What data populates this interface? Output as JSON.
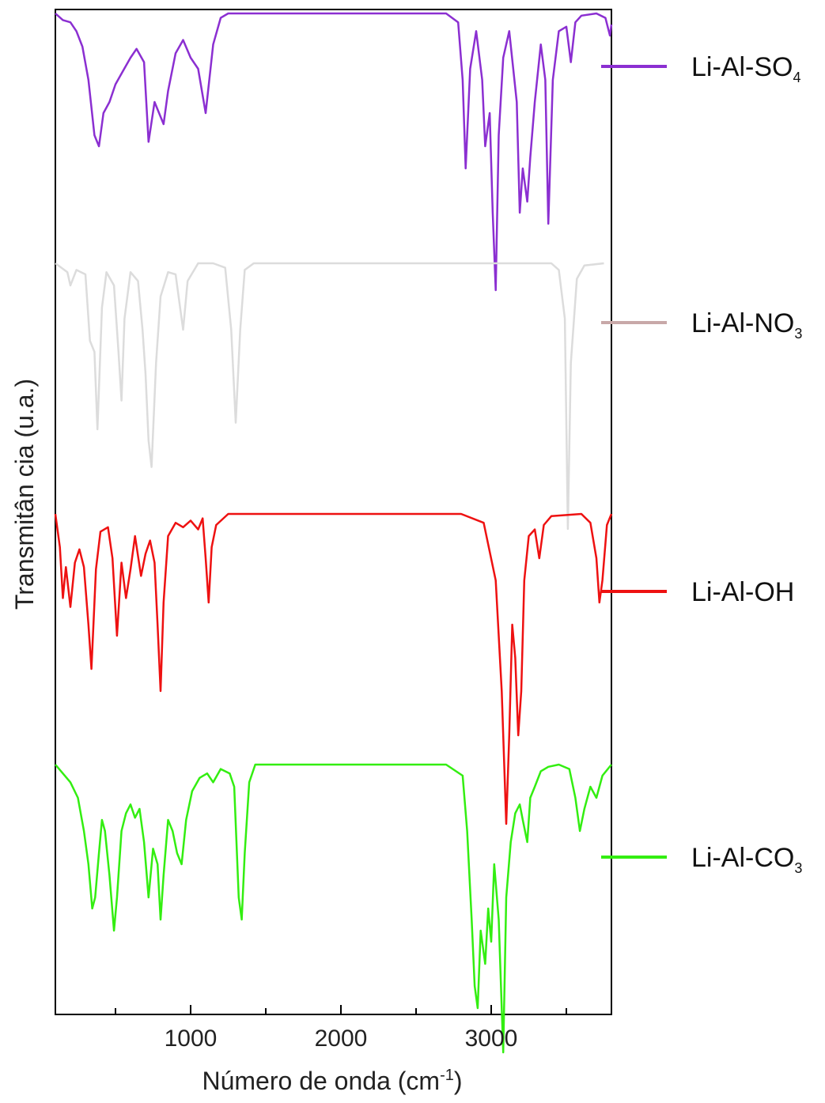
{
  "chart_data": {
    "type": "line",
    "xlabel": "Número de onda (cm",
    "xlabel_sup": "-1",
    "xlabel_tail": ")",
    "ylabel": "Transmitân cia (u.a.)",
    "xlim": [
      100,
      3800
    ],
    "x_ticks": [
      1000,
      2000,
      3000
    ],
    "x_tick_labels": [
      "1000",
      "2000",
      "3000"
    ],
    "y_ticks_shown": false,
    "grid": false,
    "legend_position": "right",
    "series": [
      {
        "name": "Li-Al-SO",
        "sub": "4",
        "color": "#8b2fd1",
        "baseline": 1.0,
        "points": [
          [
            100,
            1.0
          ],
          [
            150,
            0.97
          ],
          [
            200,
            0.96
          ],
          [
            240,
            0.92
          ],
          [
            280,
            0.85
          ],
          [
            320,
            0.7
          ],
          [
            360,
            0.45
          ],
          [
            390,
            0.4
          ],
          [
            420,
            0.55
          ],
          [
            460,
            0.6
          ],
          [
            500,
            0.68
          ],
          [
            550,
            0.74
          ],
          [
            600,
            0.8
          ],
          [
            640,
            0.84
          ],
          [
            690,
            0.78
          ],
          [
            720,
            0.42
          ],
          [
            760,
            0.6
          ],
          [
            790,
            0.55
          ],
          [
            820,
            0.5
          ],
          [
            850,
            0.65
          ],
          [
            900,
            0.82
          ],
          [
            950,
            0.88
          ],
          [
            1000,
            0.8
          ],
          [
            1050,
            0.75
          ],
          [
            1100,
            0.55
          ],
          [
            1150,
            0.86
          ],
          [
            1200,
            0.98
          ],
          [
            1250,
            1.0
          ],
          [
            1400,
            1.0
          ],
          [
            2000,
            1.0
          ],
          [
            2700,
            1.0
          ],
          [
            2780,
            0.96
          ],
          [
            2810,
            0.7
          ],
          [
            2830,
            0.3
          ],
          [
            2860,
            0.75
          ],
          [
            2900,
            0.92
          ],
          [
            2940,
            0.7
          ],
          [
            2960,
            0.4
          ],
          [
            2990,
            0.55
          ],
          [
            3010,
            0.1
          ],
          [
            3030,
            -0.25
          ],
          [
            3050,
            0.45
          ],
          [
            3080,
            0.8
          ],
          [
            3120,
            0.92
          ],
          [
            3170,
            0.6
          ],
          [
            3190,
            0.1
          ],
          [
            3210,
            0.3
          ],
          [
            3240,
            0.15
          ],
          [
            3260,
            0.35
          ],
          [
            3290,
            0.6
          ],
          [
            3330,
            0.86
          ],
          [
            3360,
            0.7
          ],
          [
            3380,
            0.05
          ],
          [
            3410,
            0.7
          ],
          [
            3450,
            0.92
          ],
          [
            3500,
            0.94
          ],
          [
            3530,
            0.78
          ],
          [
            3560,
            0.96
          ],
          [
            3600,
            0.99
          ],
          [
            3700,
            1.0
          ],
          [
            3760,
            0.98
          ],
          [
            3790,
            0.9
          ],
          [
            3800,
            0.95
          ]
        ]
      },
      {
        "name": "Li-Al-NO",
        "sub": "3",
        "color": "#dcdcdc",
        "baseline": 1.0,
        "points": [
          [
            100,
            1.0
          ],
          [
            180,
            0.96
          ],
          [
            200,
            0.9
          ],
          [
            240,
            0.97
          ],
          [
            300,
            0.95
          ],
          [
            330,
            0.65
          ],
          [
            360,
            0.6
          ],
          [
            380,
            0.25
          ],
          [
            410,
            0.8
          ],
          [
            440,
            0.96
          ],
          [
            490,
            0.9
          ],
          [
            520,
            0.6
          ],
          [
            540,
            0.38
          ],
          [
            560,
            0.75
          ],
          [
            600,
            0.96
          ],
          [
            650,
            0.92
          ],
          [
            680,
            0.7
          ],
          [
            700,
            0.5
          ],
          [
            720,
            0.2
          ],
          [
            740,
            0.08
          ],
          [
            770,
            0.55
          ],
          [
            800,
            0.85
          ],
          [
            850,
            0.96
          ],
          [
            900,
            0.95
          ],
          [
            930,
            0.8
          ],
          [
            950,
            0.7
          ],
          [
            980,
            0.92
          ],
          [
            1050,
            1.0
          ],
          [
            1150,
            1.0
          ],
          [
            1230,
            0.98
          ],
          [
            1270,
            0.7
          ],
          [
            1300,
            0.28
          ],
          [
            1330,
            0.7
          ],
          [
            1360,
            0.97
          ],
          [
            1420,
            1.0
          ],
          [
            2000,
            1.0
          ],
          [
            3000,
            1.0
          ],
          [
            3400,
            1.0
          ],
          [
            3450,
            0.97
          ],
          [
            3490,
            0.75
          ],
          [
            3510,
            -0.2
          ],
          [
            3530,
            0.55
          ],
          [
            3570,
            0.93
          ],
          [
            3620,
            0.99
          ],
          [
            3750,
            1.0
          ]
        ]
      },
      {
        "name": "Li-Al-OH",
        "sub": "",
        "color": "#ee1111",
        "baseline": 1.0,
        "points": [
          [
            100,
            1.0
          ],
          [
            130,
            0.85
          ],
          [
            150,
            0.62
          ],
          [
            170,
            0.76
          ],
          [
            200,
            0.58
          ],
          [
            230,
            0.78
          ],
          [
            260,
            0.84
          ],
          [
            290,
            0.76
          ],
          [
            320,
            0.5
          ],
          [
            340,
            0.3
          ],
          [
            370,
            0.75
          ],
          [
            400,
            0.92
          ],
          [
            450,
            0.94
          ],
          [
            480,
            0.8
          ],
          [
            510,
            0.45
          ],
          [
            540,
            0.78
          ],
          [
            570,
            0.62
          ],
          [
            600,
            0.75
          ],
          [
            630,
            0.9
          ],
          [
            670,
            0.72
          ],
          [
            700,
            0.82
          ],
          [
            730,
            0.88
          ],
          [
            760,
            0.78
          ],
          [
            780,
            0.5
          ],
          [
            800,
            0.2
          ],
          [
            820,
            0.6
          ],
          [
            850,
            0.9
          ],
          [
            900,
            0.96
          ],
          [
            950,
            0.94
          ],
          [
            1000,
            0.97
          ],
          [
            1050,
            0.93
          ],
          [
            1080,
            0.98
          ],
          [
            1100,
            0.8
          ],
          [
            1120,
            0.6
          ],
          [
            1140,
            0.85
          ],
          [
            1170,
            0.95
          ],
          [
            1250,
            1.0
          ],
          [
            2000,
            1.0
          ],
          [
            2800,
            1.0
          ],
          [
            2950,
            0.96
          ],
          [
            3030,
            0.7
          ],
          [
            3070,
            0.2
          ],
          [
            3100,
            -0.4
          ],
          [
            3120,
            0.0
          ],
          [
            3140,
            0.5
          ],
          [
            3160,
            0.35
          ],
          [
            3180,
            0.0
          ],
          [
            3200,
            0.2
          ],
          [
            3220,
            0.7
          ],
          [
            3250,
            0.9
          ],
          [
            3290,
            0.93
          ],
          [
            3320,
            0.8
          ],
          [
            3350,
            0.95
          ],
          [
            3400,
            0.99
          ],
          [
            3600,
            1.0
          ],
          [
            3660,
            0.96
          ],
          [
            3700,
            0.8
          ],
          [
            3720,
            0.6
          ],
          [
            3740,
            0.7
          ],
          [
            3770,
            0.95
          ],
          [
            3800,
            1.0
          ]
        ]
      },
      {
        "name": "Li-Al-CO",
        "sub": "3",
        "color": "#33ee11",
        "baseline": 1.0,
        "points": [
          [
            100,
            1.0
          ],
          [
            150,
            0.96
          ],
          [
            200,
            0.92
          ],
          [
            250,
            0.85
          ],
          [
            290,
            0.7
          ],
          [
            320,
            0.55
          ],
          [
            345,
            0.35
          ],
          [
            365,
            0.4
          ],
          [
            390,
            0.6
          ],
          [
            410,
            0.75
          ],
          [
            430,
            0.7
          ],
          [
            460,
            0.5
          ],
          [
            490,
            0.25
          ],
          [
            510,
            0.4
          ],
          [
            540,
            0.7
          ],
          [
            570,
            0.78
          ],
          [
            600,
            0.82
          ],
          [
            630,
            0.76
          ],
          [
            660,
            0.8
          ],
          [
            690,
            0.65
          ],
          [
            720,
            0.4
          ],
          [
            750,
            0.62
          ],
          [
            780,
            0.55
          ],
          [
            800,
            0.3
          ],
          [
            820,
            0.5
          ],
          [
            850,
            0.75
          ],
          [
            880,
            0.7
          ],
          [
            910,
            0.6
          ],
          [
            940,
            0.55
          ],
          [
            970,
            0.75
          ],
          [
            1010,
            0.88
          ],
          [
            1060,
            0.94
          ],
          [
            1110,
            0.96
          ],
          [
            1150,
            0.92
          ],
          [
            1200,
            0.98
          ],
          [
            1260,
            0.96
          ],
          [
            1290,
            0.9
          ],
          [
            1320,
            0.4
          ],
          [
            1340,
            0.3
          ],
          [
            1360,
            0.6
          ],
          [
            1390,
            0.92
          ],
          [
            1430,
            1.0
          ],
          [
            2000,
            1.0
          ],
          [
            2700,
            1.0
          ],
          [
            2810,
            0.95
          ],
          [
            2840,
            0.7
          ],
          [
            2870,
            0.3
          ],
          [
            2890,
            0.0
          ],
          [
            2910,
            -0.1
          ],
          [
            2930,
            0.25
          ],
          [
            2960,
            0.1
          ],
          [
            2980,
            0.35
          ],
          [
            3000,
            0.2
          ],
          [
            3020,
            0.55
          ],
          [
            3050,
            0.3
          ],
          [
            3080,
            -0.3
          ],
          [
            3100,
            0.4
          ],
          [
            3130,
            0.65
          ],
          [
            3160,
            0.78
          ],
          [
            3190,
            0.82
          ],
          [
            3210,
            0.75
          ],
          [
            3240,
            0.65
          ],
          [
            3260,
            0.85
          ],
          [
            3290,
            0.9
          ],
          [
            3330,
            0.97
          ],
          [
            3380,
            0.99
          ],
          [
            3450,
            1.0
          ],
          [
            3520,
            0.98
          ],
          [
            3560,
            0.85
          ],
          [
            3590,
            0.7
          ],
          [
            3620,
            0.8
          ],
          [
            3660,
            0.9
          ],
          [
            3700,
            0.85
          ],
          [
            3740,
            0.95
          ],
          [
            3800,
            1.0
          ]
        ]
      }
    ]
  }
}
